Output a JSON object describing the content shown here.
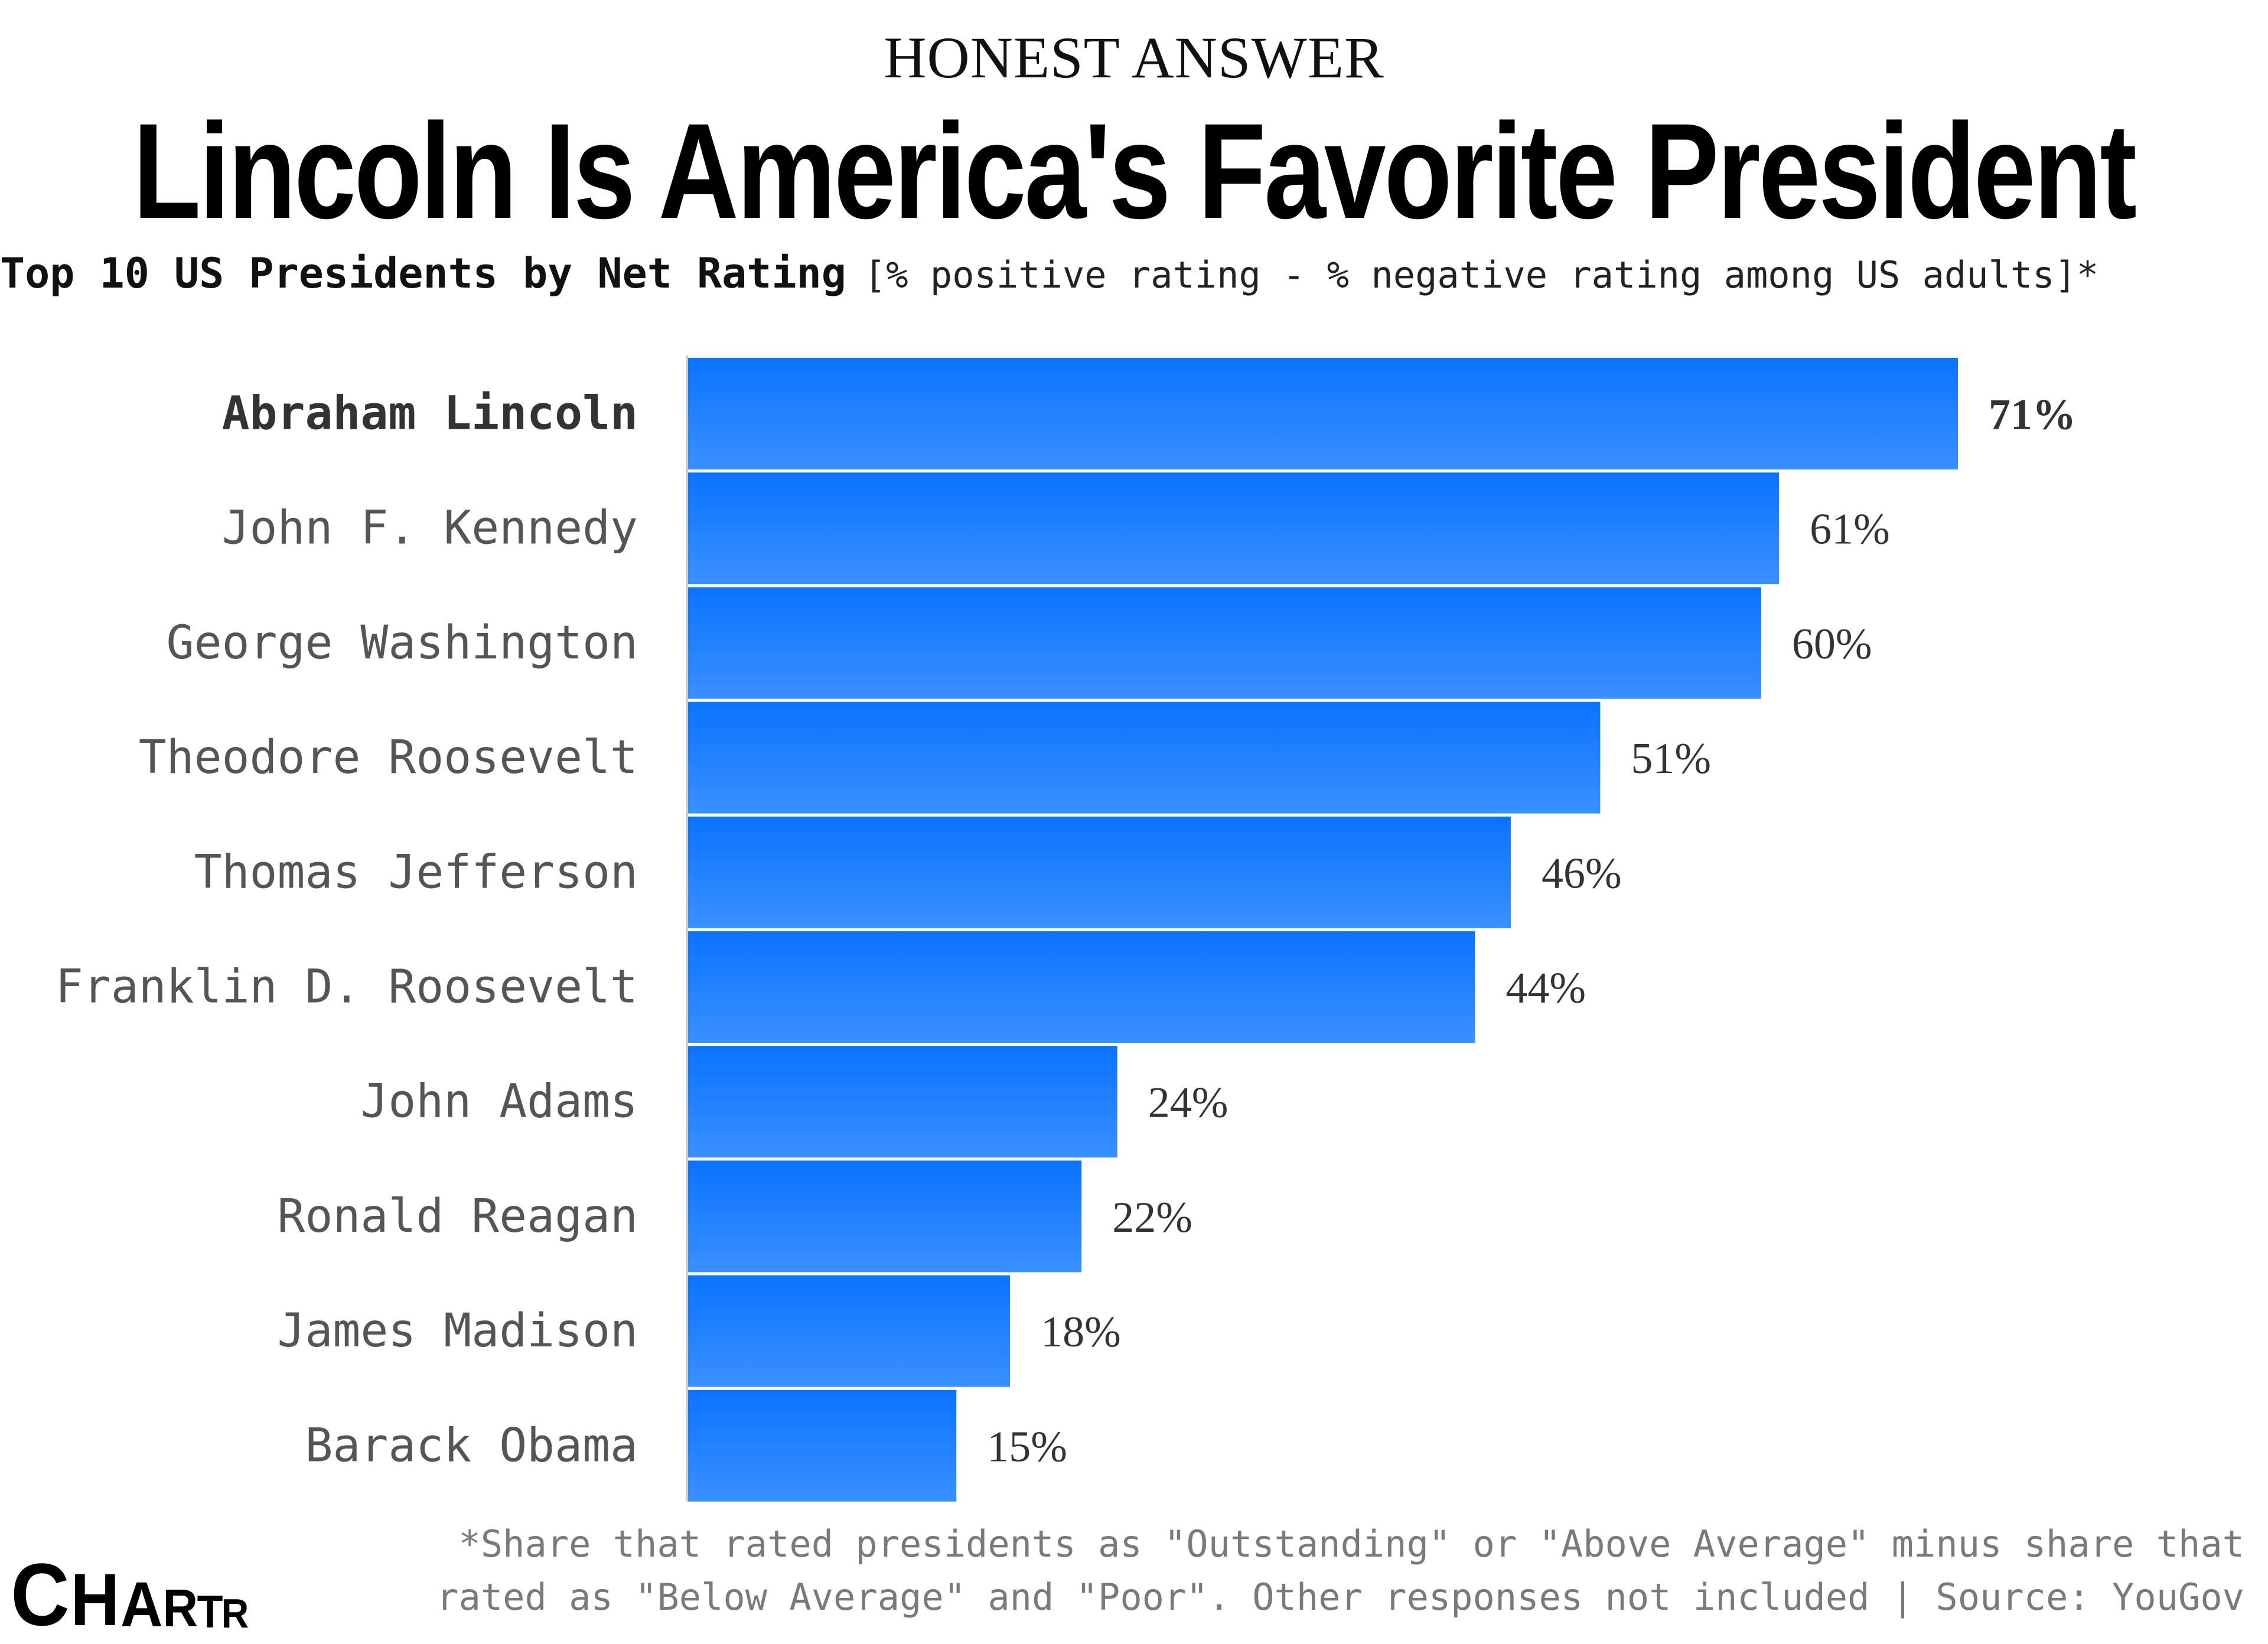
{
  "header": {
    "kicker": "HONEST ANSWER",
    "title": "Lincoln Is America's Favorite President",
    "subtitle_strong": "Top 10 US Presidents by Net Rating",
    "subtitle_note": "[% positive rating - % negative rating among US adults]*"
  },
  "colors": {
    "bar_top": "#0A73FF",
    "bar_bottom": "#3A90FF",
    "axis": "#cccccc",
    "label_highlight": "#333333",
    "label_regular": "#555555",
    "value_text": "#333333"
  },
  "chart_data": {
    "type": "bar",
    "orientation": "horizontal",
    "title": "Lincoln Is America's Favorite President",
    "subtitle": "Top 10 US Presidents by Net Rating [% positive rating - % negative rating among US adults]*",
    "xlabel": "",
    "ylabel": "",
    "xlim": [
      0,
      71
    ],
    "grid": false,
    "unit": "%",
    "highlight_index": 0,
    "categories": [
      "Abraham Lincoln",
      "John F. Kennedy",
      "George Washington",
      "Theodore Roosevelt",
      "Thomas Jefferson",
      "Franklin D. Roosevelt",
      "John Adams",
      "Ronald Reagan",
      "James Madison",
      "Barack Obama"
    ],
    "values": [
      71,
      61,
      60,
      51,
      46,
      44,
      24,
      22,
      18,
      15
    ],
    "value_labels": [
      "71%",
      "61%",
      "60%",
      "51%",
      "46%",
      "44%",
      "24%",
      "22%",
      "18%",
      "15%"
    ]
  },
  "footer": {
    "note_line1": "*Share that rated presidents as \"Outstanding\" or \"Above Average\" minus share that",
    "note_line2": "rated as \"Below Average\" and \"Poor\". Other responses not included | Source: YouGov",
    "logo": [
      "C",
      "H",
      "A",
      "R",
      "T",
      "R"
    ]
  }
}
